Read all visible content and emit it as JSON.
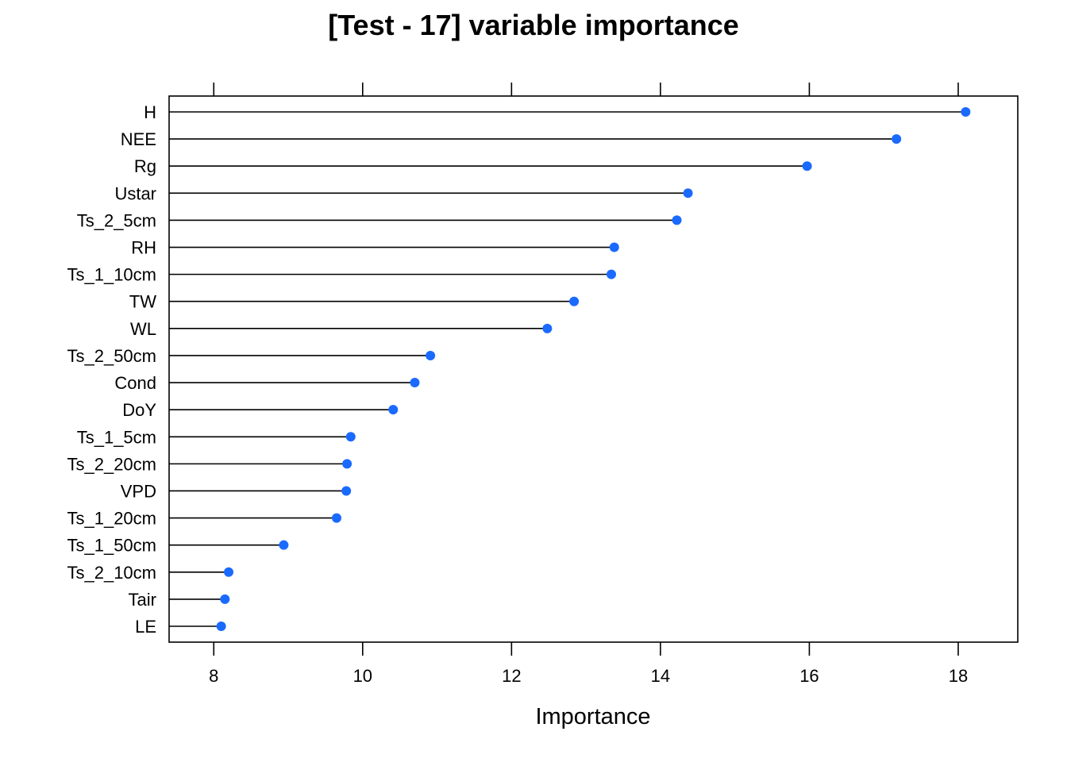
{
  "chart_data": {
    "type": "lollipop",
    "title": "[Test - 17] variable importance",
    "xlabel": "Importance",
    "ylabel": "",
    "xlim": [
      7.4,
      18.8
    ],
    "xticks": [
      8,
      10,
      12,
      14,
      16,
      18
    ],
    "grid": false,
    "point_color": "#1A6AFF",
    "line_color": "#000000",
    "categories": [
      "H",
      "NEE",
      "Rg",
      "Ustar",
      "Ts_2_5cm",
      "RH",
      "Ts_1_10cm",
      "TW",
      "WL",
      "Ts_2_50cm",
      "Cond",
      "DoY",
      "Ts_1_5cm",
      "Ts_2_20cm",
      "VPD",
      "Ts_1_20cm",
      "Ts_1_50cm",
      "Ts_2_10cm",
      "Tair",
      "LE"
    ],
    "values": [
      18.1,
      17.17,
      15.97,
      14.37,
      14.22,
      13.38,
      13.34,
      12.84,
      12.48,
      10.91,
      10.7,
      10.41,
      9.84,
      9.79,
      9.78,
      9.65,
      8.94,
      8.2,
      8.15,
      8.1
    ]
  }
}
